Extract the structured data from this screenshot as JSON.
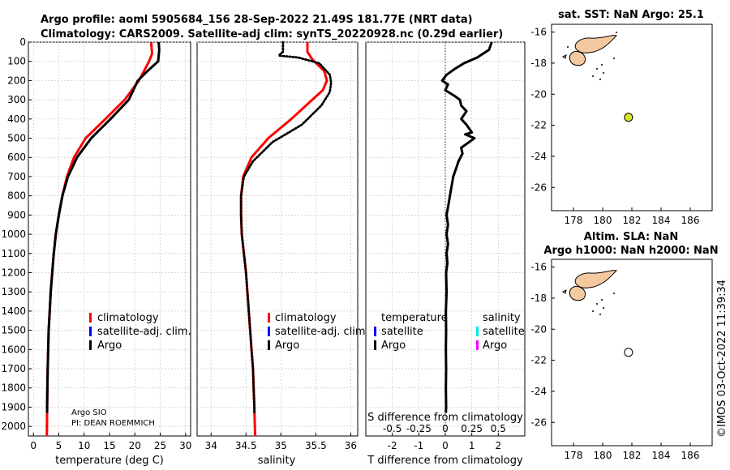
{
  "header": {
    "title_line1": "Argo profile: aoml 5905684_156 28-Sep-2022 21.49S 181.77E (NRT data)",
    "title_line2": "Climatology: CARS2009. Satellite-adj clim: synTS_20220928.nc (0.29d earlier)"
  },
  "credit": {
    "line1": "Argo SIO",
    "line2": "PI: DEAN ROEMMICH"
  },
  "timestamp": "©IMOS 03-Oct-2022 11:39:34",
  "colors": {
    "climatology": "#ff0000",
    "satellite": "#0000ff",
    "argo": "#000000",
    "sat_salinity": "#00e5ee",
    "argo_salinity": "#ff00ff",
    "land": "#f5c9a0",
    "marker_sst": "#d8e81a"
  },
  "chart_data": [
    {
      "id": "temperature",
      "type": "line",
      "xlabel": "temperature (deg C)",
      "xlim": [
        -1,
        31
      ],
      "xticks": [
        0,
        5,
        10,
        15,
        20,
        25,
        30
      ],
      "ylim": [
        0,
        2050
      ],
      "yticks": [
        0,
        100,
        200,
        300,
        400,
        500,
        600,
        700,
        800,
        900,
        1000,
        1100,
        1200,
        1300,
        1400,
        1500,
        1600,
        1700,
        1800,
        1900,
        2000
      ],
      "legend": [
        "climatology",
        "satellite-adj. clim.",
        "Argo"
      ],
      "series": [
        {
          "name": "climatology",
          "style": "solid",
          "color": "#ff0000",
          "points": [
            [
              23.2,
              0
            ],
            [
              23.4,
              60
            ],
            [
              22.8,
              100
            ],
            [
              20.8,
              200
            ],
            [
              18.0,
              300
            ],
            [
              14.2,
              400
            ],
            [
              10.3,
              500
            ],
            [
              8.0,
              600
            ],
            [
              6.6,
              700
            ],
            [
              5.7,
              800
            ],
            [
              5.0,
              900
            ],
            [
              4.4,
              1000
            ],
            [
              4.0,
              1100
            ],
            [
              3.7,
              1200
            ],
            [
              3.4,
              1300
            ],
            [
              3.2,
              1400
            ],
            [
              3.0,
              1500
            ],
            [
              2.9,
              1600
            ],
            [
              2.8,
              1700
            ],
            [
              2.75,
              1800
            ],
            [
              2.7,
              1900
            ],
            [
              2.65,
              2050
            ]
          ]
        },
        {
          "name": "Argo",
          "style": "solid",
          "color": "#000000",
          "points": [
            [
              24.7,
              0
            ],
            [
              24.8,
              40
            ],
            [
              24.6,
              100
            ],
            [
              22.5,
              150
            ],
            [
              20.6,
              200
            ],
            [
              18.8,
              300
            ],
            [
              15.2,
              400
            ],
            [
              11.4,
              500
            ],
            [
              8.6,
              600
            ],
            [
              6.8,
              700
            ],
            [
              5.7,
              800
            ],
            [
              5.0,
              900
            ],
            [
              4.4,
              1000
            ],
            [
              4.0,
              1100
            ],
            [
              3.7,
              1200
            ],
            [
              3.4,
              1300
            ],
            [
              3.2,
              1400
            ],
            [
              3.0,
              1500
            ],
            [
              2.9,
              1600
            ],
            [
              2.8,
              1700
            ],
            [
              2.75,
              1800
            ],
            [
              2.7,
              1900
            ],
            [
              2.7,
              1930
            ]
          ]
        }
      ]
    },
    {
      "id": "salinity",
      "type": "line",
      "xlabel": "salinity",
      "xlim": [
        33.8,
        36.1
      ],
      "xticks": [
        34,
        34.5,
        35,
        35.5,
        36
      ],
      "tick_labels": [
        "34",
        "34.5",
        "35",
        "35.5",
        "36"
      ],
      "ylim": [
        0,
        2050
      ],
      "legend": [
        "climatology",
        "satellite-adj. clim.",
        "Argo"
      ],
      "series": [
        {
          "name": "climatology",
          "style": "solid",
          "color": "#ff0000",
          "points": [
            [
              35.38,
              0
            ],
            [
              35.38,
              50
            ],
            [
              35.45,
              90
            ],
            [
              35.62,
              150
            ],
            [
              35.66,
              200
            ],
            [
              35.6,
              250
            ],
            [
              35.45,
              300
            ],
            [
              35.15,
              400
            ],
            [
              34.82,
              500
            ],
            [
              34.58,
              600
            ],
            [
              34.46,
              700
            ],
            [
              34.43,
              800
            ],
            [
              34.43,
              900
            ],
            [
              34.44,
              1000
            ],
            [
              34.47,
              1100
            ],
            [
              34.5,
              1200
            ],
            [
              34.52,
              1300
            ],
            [
              34.54,
              1400
            ],
            [
              34.56,
              1500
            ],
            [
              34.58,
              1600
            ],
            [
              34.6,
              1700
            ],
            [
              34.61,
              1800
            ],
            [
              34.62,
              1900
            ],
            [
              34.63,
              2050
            ]
          ]
        },
        {
          "name": "Argo",
          "style": "dotted",
          "color": "#000000",
          "points": [
            [
              35.03,
              0
            ],
            [
              35.03,
              50
            ],
            [
              34.97,
              70
            ],
            [
              35.25,
              80
            ],
            [
              35.55,
              110
            ],
            [
              35.7,
              170
            ],
            [
              35.72,
              210
            ],
            [
              35.7,
              260
            ],
            [
              35.58,
              330
            ],
            [
              35.3,
              430
            ],
            [
              34.88,
              520
            ],
            [
              34.6,
              620
            ],
            [
              34.47,
              700
            ],
            [
              34.43,
              800
            ],
            [
              34.43,
              900
            ],
            [
              34.44,
              1000
            ],
            [
              34.47,
              1100
            ],
            [
              34.5,
              1200
            ],
            [
              34.52,
              1300
            ],
            [
              34.54,
              1400
            ],
            [
              34.56,
              1500
            ],
            [
              34.58,
              1600
            ],
            [
              34.6,
              1700
            ],
            [
              34.61,
              1800
            ],
            [
              34.62,
              1900
            ],
            [
              34.62,
              1930
            ]
          ]
        }
      ]
    },
    {
      "id": "difference",
      "type": "line",
      "xlabel": "T difference from climatology",
      "top_xlabel": "S difference from climatology",
      "xlim": [
        -3,
        3
      ],
      "xticks": [
        -2,
        -1,
        0,
        1,
        2
      ],
      "top_ticks": [
        -0.5,
        -0.25,
        0,
        0.25,
        0.5
      ],
      "top_tick_labels": [
        "-0.5",
        "-0.25",
        "0",
        "0.25",
        "0.5"
      ],
      "ylim": [
        0,
        2050
      ],
      "legend_temperature_title": "temperature",
      "legend_salinity_title": "salinity",
      "legend_temperature": [
        "satellite",
        "Argo"
      ],
      "legend_salinity": [
        "satellite",
        "Argo"
      ],
      "series": [
        {
          "name": "T difference Argo",
          "style": "solid",
          "color": "#000000",
          "points": [
            [
              1.75,
              0
            ],
            [
              1.65,
              40
            ],
            [
              1.2,
              80
            ],
            [
              0.7,
              110
            ],
            [
              0.35,
              140
            ],
            [
              0.05,
              170
            ],
            [
              -0.12,
              200
            ],
            [
              0.1,
              220
            ],
            [
              0.0,
              250
            ],
            [
              0.35,
              280
            ],
            [
              0.55,
              300
            ],
            [
              0.6,
              330
            ],
            [
              0.8,
              360
            ],
            [
              0.6,
              400
            ],
            [
              0.8,
              430
            ],
            [
              1.0,
              470
            ],
            [
              0.75,
              480
            ],
            [
              1.1,
              500
            ],
            [
              0.9,
              520
            ],
            [
              0.6,
              550
            ],
            [
              0.65,
              580
            ],
            [
              0.5,
              620
            ],
            [
              0.4,
              660
            ],
            [
              0.3,
              700
            ],
            [
              0.25,
              740
            ],
            [
              0.2,
              780
            ],
            [
              0.15,
              820
            ],
            [
              0.1,
              860
            ],
            [
              0.05,
              900
            ],
            [
              0.1,
              950
            ],
            [
              0.05,
              1000
            ],
            [
              0.1,
              1050
            ],
            [
              0.05,
              1100
            ],
            [
              0.08,
              1150
            ],
            [
              0.03,
              1200
            ],
            [
              0.05,
              1300
            ],
            [
              0.02,
              1400
            ],
            [
              0.03,
              1500
            ],
            [
              0.02,
              1600
            ],
            [
              0.03,
              1700
            ],
            [
              0.02,
              1800
            ],
            [
              0.03,
              1900
            ],
            [
              0.02,
              1930
            ]
          ]
        }
      ]
    },
    {
      "id": "map_sst",
      "type": "scatter",
      "title": "sat. SST: NaN Argo: 25.1",
      "xlim": [
        176.5,
        187.5
      ],
      "xticks": [
        178,
        180,
        182,
        184,
        186
      ],
      "ylim": [
        -27.5,
        -15.5
      ],
      "yticks": [
        -16,
        -18,
        -20,
        -22,
        -24,
        -26
      ],
      "marker": {
        "lon": 181.77,
        "lat": -21.49,
        "fill": "#d8e81a"
      }
    },
    {
      "id": "map_sla",
      "type": "scatter",
      "title_line1": "Altim. SLA: NaN",
      "title_line2": "Argo h1000: NaN h2000: NaN",
      "xlim": [
        176.5,
        187.5
      ],
      "xticks": [
        178,
        180,
        182,
        184,
        186
      ],
      "ylim": [
        -27.5,
        -15.5
      ],
      "yticks": [
        -16,
        -18,
        -20,
        -22,
        -24,
        -26
      ],
      "marker": {
        "lon": 181.77,
        "lat": -21.49,
        "fill": "#ffffff"
      }
    }
  ]
}
